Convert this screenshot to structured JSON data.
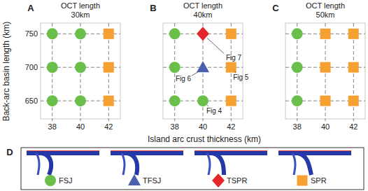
{
  "chart_data": [
    {
      "type": "scatter",
      "title": "OCT length",
      "subtitle": "30km",
      "xlim": [
        37.17,
        42.83
      ],
      "ylim": [
        623,
        766
      ],
      "xticks": [
        38,
        40,
        42
      ],
      "yticks": [
        650,
        700,
        750
      ],
      "grid": true,
      "series": [
        {
          "name": "FSJ",
          "color": "#6abf4b",
          "marker": "circle",
          "x": [
            38,
            38,
            38,
            40,
            40,
            40
          ],
          "values": [
            650,
            700,
            750,
            650,
            700,
            750
          ]
        },
        {
          "name": "SPR",
          "color": "#f5a030",
          "marker": "square",
          "x": [
            42,
            42,
            42
          ],
          "values": [
            650,
            700,
            750
          ]
        }
      ]
    },
    {
      "type": "scatter",
      "title": "OCT length",
      "subtitle": "40km",
      "xlim": [
        37.17,
        42.83
      ],
      "ylim": [
        623,
        766
      ],
      "xticks": [
        38,
        40,
        42
      ],
      "yticks": [
        650,
        700,
        750
      ],
      "grid": true,
      "tick_labels": "x",
      "series": [
        {
          "name": "FSJ",
          "color": "#6abf4b",
          "marker": "circle",
          "x": [
            38,
            38,
            38,
            40
          ],
          "values": [
            650,
            700,
            750,
            650
          ]
        },
        {
          "name": "TFSJ",
          "color": "#4a5fae",
          "marker": "triangle",
          "x": [
            40
          ],
          "values": [
            700
          ]
        },
        {
          "name": "TSPR",
          "color": "#e3262b",
          "marker": "diamond",
          "x": [
            40
          ],
          "values": [
            750
          ]
        },
        {
          "name": "SPR",
          "color": "#f5a030",
          "marker": "square",
          "x": [
            42,
            42,
            42
          ],
          "values": [
            650,
            700,
            750
          ]
        }
      ],
      "annotations": [
        {
          "text": "Fig 7",
          "x": 40,
          "y": 750
        },
        {
          "text": "Fig 6",
          "x": 40,
          "y": 700
        },
        {
          "text": "Fig 5",
          "x": 42,
          "y": 700
        },
        {
          "text": "Fig 4",
          "x": 40,
          "y": 650
        }
      ]
    },
    {
      "type": "scatter",
      "title": "OCT length",
      "subtitle": "50km",
      "xlim": [
        37.17,
        42.83
      ],
      "ylim": [
        623,
        766
      ],
      "xticks": [
        38,
        40,
        42
      ],
      "yticks": [
        650,
        700,
        750
      ],
      "grid": true,
      "tick_labels": "x",
      "series": [
        {
          "name": "FSJ",
          "color": "#6abf4b",
          "marker": "circle",
          "x": [
            38,
            38,
            38
          ],
          "values": [
            650,
            700,
            750
          ]
        },
        {
          "name": "SPR",
          "color": "#f5a030",
          "marker": "square",
          "x": [
            40,
            40,
            40,
            42,
            42,
            42
          ],
          "values": [
            650,
            700,
            750,
            650,
            700,
            750
          ]
        }
      ]
    }
  ],
  "xlabel": "Island arc crust thickness (km)",
  "ylabel": "Back-arc basin length (km)",
  "panel_labels": [
    "A",
    "B",
    "C",
    "D"
  ]
}
